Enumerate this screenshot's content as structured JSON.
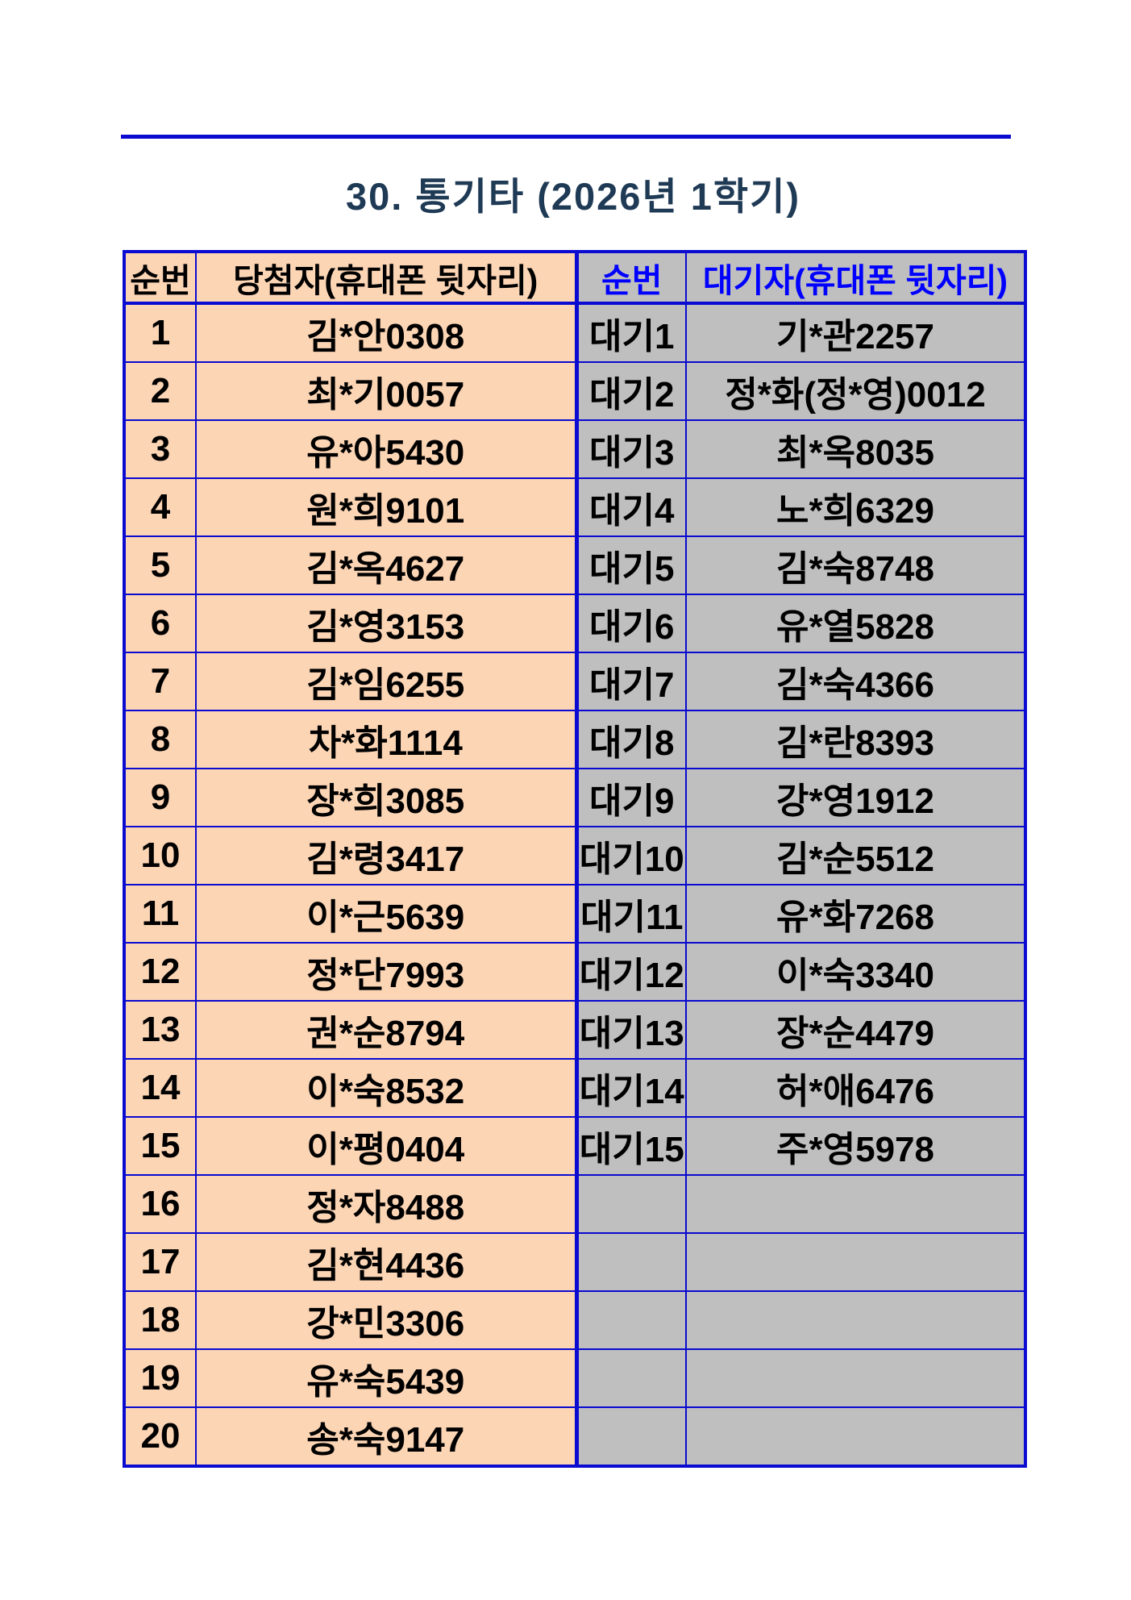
{
  "page": {
    "title": "30. 통기타 (2026년 1학기)"
  },
  "colors": {
    "border_blue": "#0a0ad0",
    "waitlist_header_text": "#0000ff",
    "title_navy": "#1f3a55",
    "winner_cell_bg": "#fcd5b5",
    "waitlist_cell_bg": "#bfbfbf"
  },
  "table": {
    "headers": {
      "winner_rank": "순번",
      "winner_name": "당첨자(휴대폰 뒷자리)",
      "wait_rank": "순번",
      "wait_name": "대기자(휴대폰 뒷자리)"
    },
    "rows": [
      {
        "winner_rank": "1",
        "winner_name": "김*안0308",
        "wait_rank": "대기1",
        "wait_name": "기*관2257"
      },
      {
        "winner_rank": "2",
        "winner_name": "최*기0057",
        "wait_rank": "대기2",
        "wait_name": "정*화(정*영)0012"
      },
      {
        "winner_rank": "3",
        "winner_name": "유*아5430",
        "wait_rank": "대기3",
        "wait_name": "최*옥8035"
      },
      {
        "winner_rank": "4",
        "winner_name": "원*희9101",
        "wait_rank": "대기4",
        "wait_name": "노*희6329"
      },
      {
        "winner_rank": "5",
        "winner_name": "김*옥4627",
        "wait_rank": "대기5",
        "wait_name": "김*숙8748"
      },
      {
        "winner_rank": "6",
        "winner_name": "김*영3153",
        "wait_rank": "대기6",
        "wait_name": "유*열5828"
      },
      {
        "winner_rank": "7",
        "winner_name": "김*임6255",
        "wait_rank": "대기7",
        "wait_name": "김*숙4366"
      },
      {
        "winner_rank": "8",
        "winner_name": "차*화1114",
        "wait_rank": "대기8",
        "wait_name": "김*란8393"
      },
      {
        "winner_rank": "9",
        "winner_name": "장*희3085",
        "wait_rank": "대기9",
        "wait_name": "강*영1912"
      },
      {
        "winner_rank": "10",
        "winner_name": "김*령3417",
        "wait_rank": "대기10",
        "wait_name": "김*순5512"
      },
      {
        "winner_rank": "11",
        "winner_name": "이*근5639",
        "wait_rank": "대기11",
        "wait_name": "유*화7268"
      },
      {
        "winner_rank": "12",
        "winner_name": "정*단7993",
        "wait_rank": "대기12",
        "wait_name": "이*숙3340"
      },
      {
        "winner_rank": "13",
        "winner_name": "권*순8794",
        "wait_rank": "대기13",
        "wait_name": "장*순4479"
      },
      {
        "winner_rank": "14",
        "winner_name": "이*숙8532",
        "wait_rank": "대기14",
        "wait_name": "허*애6476"
      },
      {
        "winner_rank": "15",
        "winner_name": "이*평0404",
        "wait_rank": "대기15",
        "wait_name": "주*영5978"
      },
      {
        "winner_rank": "16",
        "winner_name": "정*자8488",
        "wait_rank": "",
        "wait_name": ""
      },
      {
        "winner_rank": "17",
        "winner_name": "김*현4436",
        "wait_rank": "",
        "wait_name": ""
      },
      {
        "winner_rank": "18",
        "winner_name": "강*민3306",
        "wait_rank": "",
        "wait_name": ""
      },
      {
        "winner_rank": "19",
        "winner_name": "유*숙5439",
        "wait_rank": "",
        "wait_name": ""
      },
      {
        "winner_rank": "20",
        "winner_name": "송*숙9147",
        "wait_rank": "",
        "wait_name": ""
      }
    ]
  }
}
